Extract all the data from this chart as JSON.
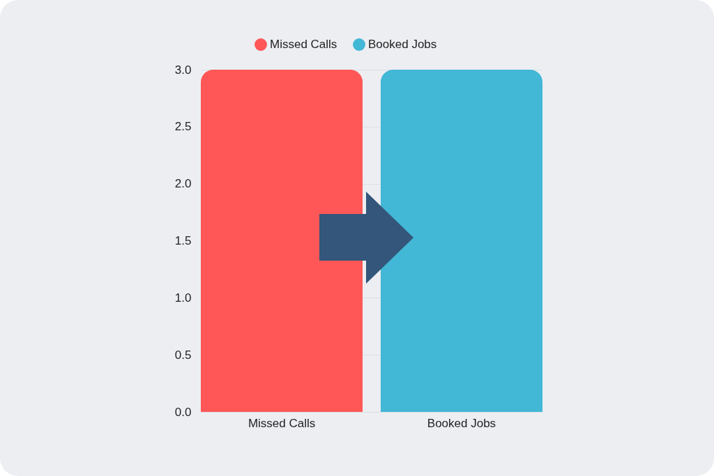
{
  "chart_data": {
    "type": "bar",
    "categories": [
      "Missed Calls",
      "Booked Jobs"
    ],
    "series": [
      {
        "name": "Missed Calls",
        "color": "#ff5757",
        "values": [
          3,
          null
        ]
      },
      {
        "name": "Booked Jobs",
        "color": "#42b7d6",
        "values": [
          null,
          3
        ]
      }
    ],
    "ylim": [
      0,
      3
    ],
    "yticks": [
      {
        "value": 0,
        "label": "0.0"
      },
      0.5,
      {
        "value": 1,
        "label": "1.0"
      },
      1.5,
      {
        "value": 2,
        "label": "2.0"
      },
      2.5,
      {
        "value": 3,
        "label": "3.0"
      }
    ],
    "grid": "y",
    "legend": "top"
  }
}
